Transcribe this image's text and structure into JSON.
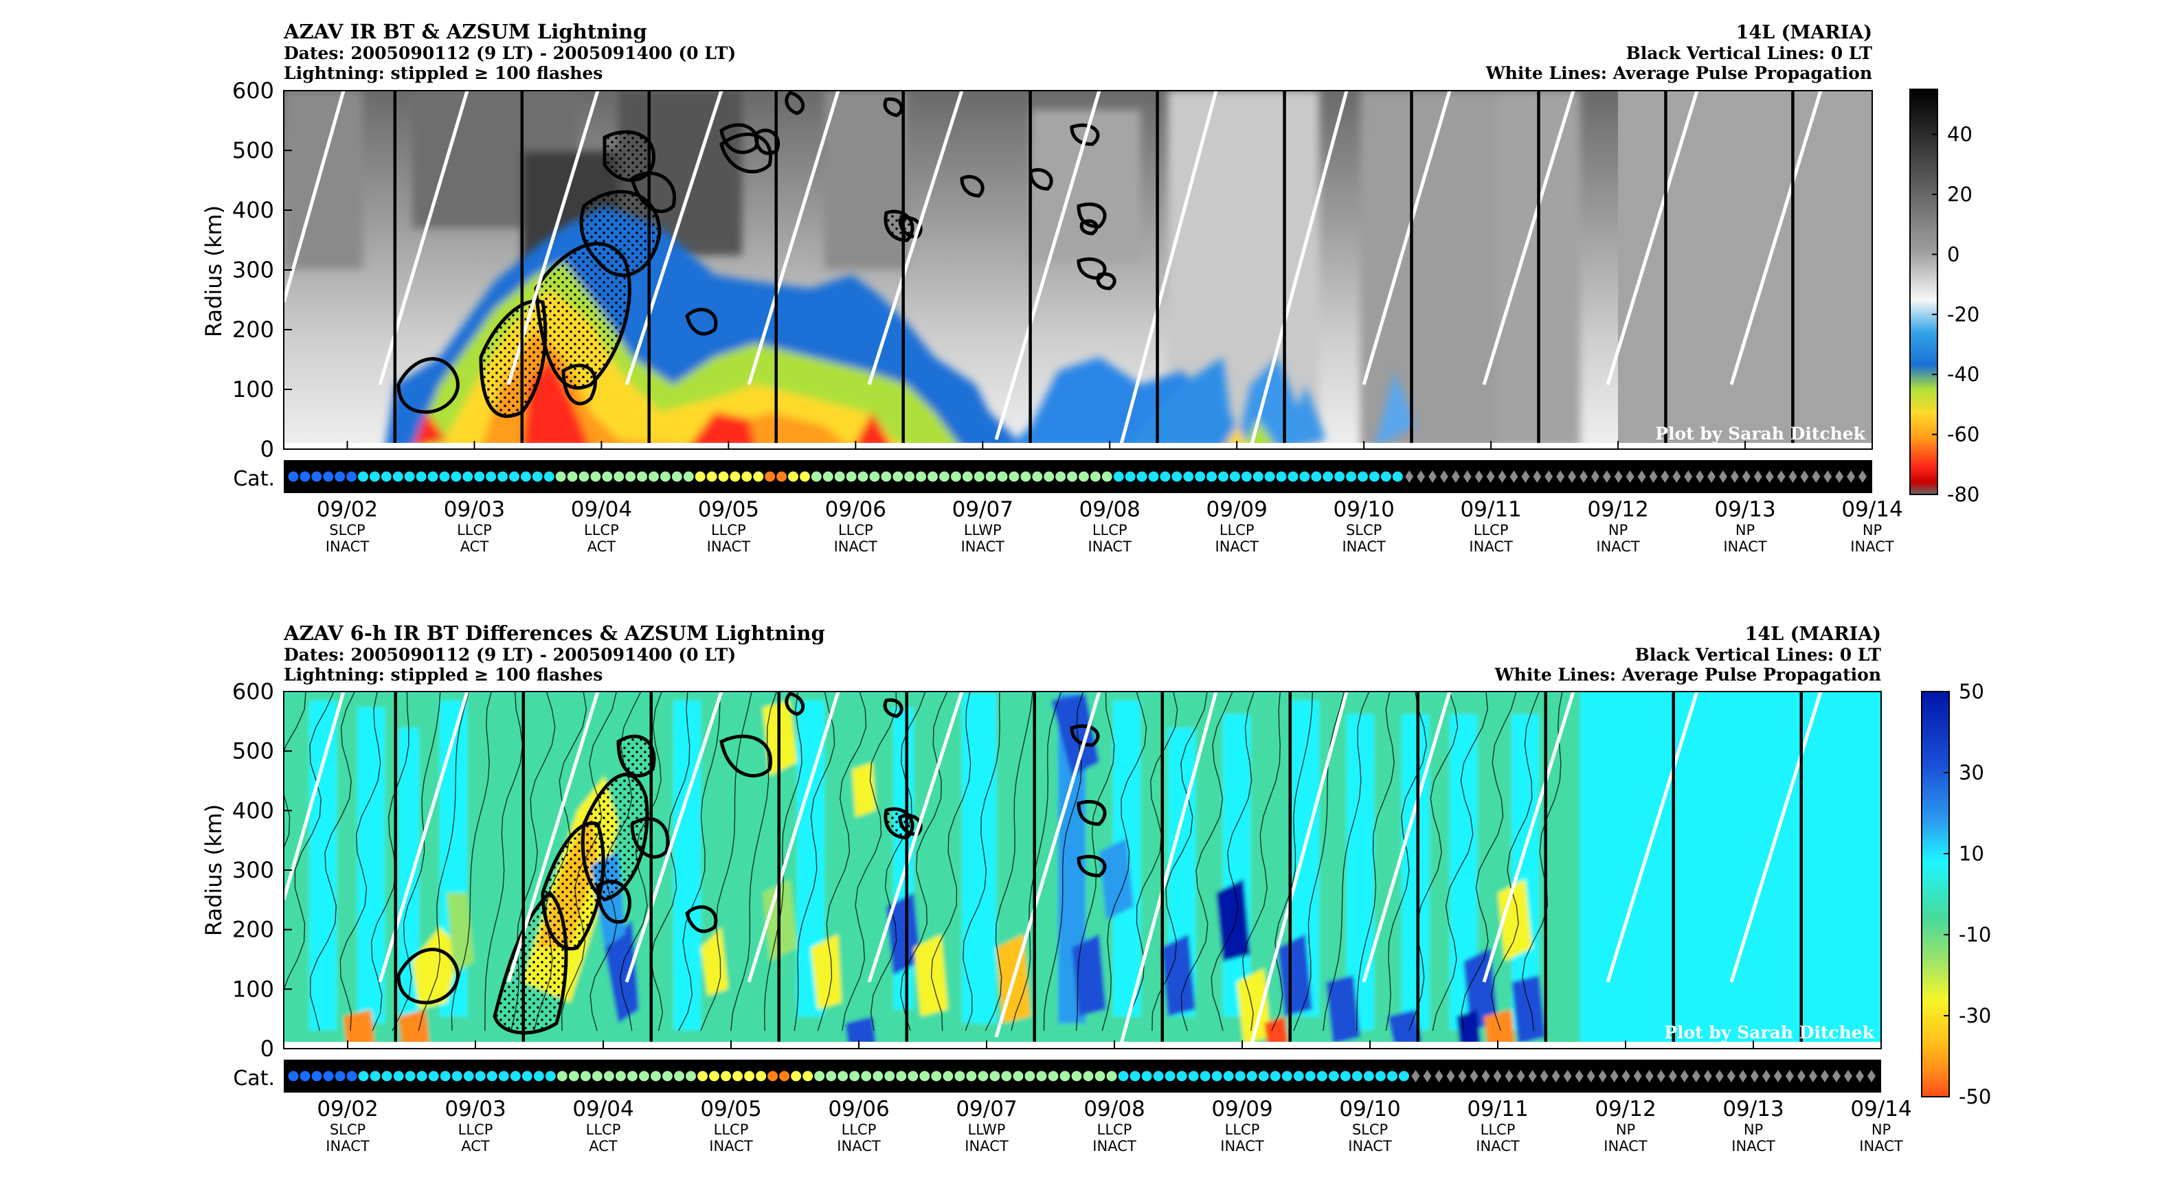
{
  "panels": [
    {
      "id": "top",
      "title": "AZAV IR BT & AZSUM Lightning",
      "dates": "Dates: 2005090112 (9 LT) - 2005091400 (0 LT)",
      "lightning": "Lightning: stippled ≥ 100 flashes",
      "storm": "14L (MARIA)",
      "vlines": "Black Vertical Lines: 0 LT",
      "wlines": "White Lines: Average Pulse Propagation",
      "credit": "Plot by Sarah Ditchek",
      "ylabel": "Radius (km)",
      "cat_label": "Cat.",
      "colorbar_ticks": [
        "40",
        "20",
        "0",
        "-20",
        "-40",
        "-60",
        "-80"
      ],
      "colorbar_values": [
        40,
        20,
        0,
        -20,
        -40,
        -60,
        -80
      ],
      "colorbar_range": [
        -80,
        55
      ]
    },
    {
      "id": "bottom",
      "title": "AZAV 6-h IR BT Differences & AZSUM Lightning",
      "dates": "Dates: 2005090112 (9 LT) - 2005091400 (0 LT)",
      "lightning": "Lightning: stippled ≥ 100 flashes",
      "storm": "14L (MARIA)",
      "vlines": "Black Vertical Lines: 0 LT",
      "wlines": "White Lines: Average Pulse Propagation",
      "credit": "Plot by Sarah Ditchek",
      "ylabel": "Radius (km)",
      "cat_label": "Cat.",
      "colorbar_ticks": [
        "50",
        "30",
        "10",
        "-10",
        "-30",
        "-50"
      ],
      "colorbar_values": [
        50,
        30,
        10,
        -10,
        -30,
        -50
      ],
      "colorbar_range": [
        -50,
        50
      ]
    }
  ],
  "chart_data": [
    {
      "type": "heatmap",
      "title": "AZAV IR BT & AZSUM Lightning",
      "ylabel": "Radius (km)",
      "ylim": [
        0,
        600
      ],
      "yticks": [
        "600",
        "500",
        "400",
        "300",
        "200",
        "100",
        "0"
      ],
      "ytick_values": [
        600,
        500,
        400,
        300,
        200,
        100,
        0
      ],
      "xlim": [
        "09/01 12 UTC",
        "09/14 00 UTC"
      ],
      "xticks": [
        {
          "date": "09/02",
          "phase": "SLCP",
          "state": "INACT"
        },
        {
          "date": "09/03",
          "phase": "LLCP",
          "state": "ACT"
        },
        {
          "date": "09/04",
          "phase": "LLCP",
          "state": "ACT"
        },
        {
          "date": "09/05",
          "phase": "LLCP",
          "state": "INACT"
        },
        {
          "date": "09/06",
          "phase": "LLCP",
          "state": "INACT"
        },
        {
          "date": "09/07",
          "phase": "LLWP",
          "state": "INACT"
        },
        {
          "date": "09/08",
          "phase": "LLCP",
          "state": "INACT"
        },
        {
          "date": "09/09",
          "phase": "LLCP",
          "state": "INACT"
        },
        {
          "date": "09/10",
          "phase": "SLCP",
          "state": "INACT"
        },
        {
          "date": "09/11",
          "phase": "LLCP",
          "state": "INACT"
        },
        {
          "date": "09/12",
          "phase": "NP",
          "state": "INACT"
        },
        {
          "date": "09/13",
          "phase": "NP",
          "state": "INACT"
        },
        {
          "date": "09/14",
          "phase": "NP",
          "state": "INACT"
        }
      ],
      "colormap": "gray (above -20) / blue-yellow-red enhanced (below -30)",
      "cbar_range": [
        -80,
        55
      ]
    },
    {
      "type": "heatmap",
      "title": "AZAV 6-h IR BT Differences & AZSUM Lightning",
      "ylabel": "Radius (km)",
      "ylim": [
        0,
        600
      ],
      "yticks": [
        "600",
        "500",
        "400",
        "300",
        "200",
        "100",
        "0"
      ],
      "ytick_values": [
        600,
        500,
        400,
        300,
        200,
        100,
        0
      ],
      "xlim": [
        "09/01 12 UTC",
        "09/14 00 UTC"
      ],
      "xticks": [
        {
          "date": "09/02",
          "phase": "SLCP",
          "state": "INACT"
        },
        {
          "date": "09/03",
          "phase": "LLCP",
          "state": "ACT"
        },
        {
          "date": "09/04",
          "phase": "LLCP",
          "state": "ACT"
        },
        {
          "date": "09/05",
          "phase": "LLCP",
          "state": "INACT"
        },
        {
          "date": "09/06",
          "phase": "LLCP",
          "state": "INACT"
        },
        {
          "date": "09/07",
          "phase": "LLWP",
          "state": "INACT"
        },
        {
          "date": "09/08",
          "phase": "LLCP",
          "state": "INACT"
        },
        {
          "date": "09/09",
          "phase": "LLCP",
          "state": "INACT"
        },
        {
          "date": "09/10",
          "phase": "SLCP",
          "state": "INACT"
        },
        {
          "date": "09/11",
          "phase": "LLCP",
          "state": "INACT"
        },
        {
          "date": "09/12",
          "phase": "NP",
          "state": "INACT"
        },
        {
          "date": "09/13",
          "phase": "NP",
          "state": "INACT"
        },
        {
          "date": "09/14",
          "phase": "NP",
          "state": "INACT"
        }
      ],
      "colormap": "dark blue (+50) - cyan (0) - green - yellow - orange-red (-50)",
      "cbar_range": [
        -50,
        50
      ]
    }
  ],
  "category_track": [
    "TD",
    "TD",
    "TD",
    "TD",
    "TD",
    "TD",
    "TS",
    "TS",
    "TS",
    "TS",
    "TS",
    "TS",
    "TS",
    "TS",
    "TS",
    "TS",
    "TS",
    "TS",
    "TS",
    "TS",
    "TS",
    "TS",
    "TS",
    "H1",
    "H1",
    "H1",
    "H1",
    "H1",
    "H1",
    "H1",
    "H1",
    "H1",
    "H1",
    "H1",
    "H1",
    "H2",
    "H2",
    "H2",
    "H2",
    "H2",
    "H2",
    "H3",
    "H3",
    "H2",
    "H2",
    "H1",
    "H1",
    "H1",
    "H1",
    "H1",
    "H1",
    "H1",
    "H1",
    "H1",
    "H1",
    "H1",
    "H1",
    "H1",
    "H1",
    "H1",
    "H1",
    "H1",
    "H1",
    "H1",
    "H1",
    "H1",
    "H1",
    "H1",
    "H1",
    "H1",
    "H1",
    "TS",
    "TS",
    "TS",
    "TS",
    "TS",
    "TS",
    "TS",
    "TS",
    "TS",
    "TS",
    "TS",
    "TS",
    "TS",
    "TS",
    "TS",
    "TS",
    "TS",
    "TS",
    "TS",
    "TS",
    "TS",
    "TS",
    "TS",
    "TS",
    "TS",
    "EX",
    "EX",
    "EX",
    "EX",
    "EX",
    "EX",
    "EX",
    "EX",
    "EX",
    "EX",
    "EX",
    "EX",
    "EX",
    "EX",
    "EX",
    "EX",
    "EX",
    "EX",
    "EX",
    "EX",
    "EX",
    "EX",
    "EX",
    "EX",
    "EX",
    "EX",
    "EX",
    "EX",
    "EX",
    "EX",
    "EX",
    "EX",
    "EX",
    "EX",
    "EX",
    "EX",
    "EX",
    "EX",
    "EX",
    "EX"
  ],
  "category_colors": {
    "TD": "#1a6cff",
    "TS": "#19e3ff",
    "H1": "#a6f5a6",
    "H2": "#ffff4d",
    "H3": "#ff7f1a",
    "EX": "#8c8c8c"
  },
  "colors": {
    "axis": "#000000",
    "background": "#ffffff",
    "white_line": "#ffffff",
    "contour": "#000000"
  }
}
